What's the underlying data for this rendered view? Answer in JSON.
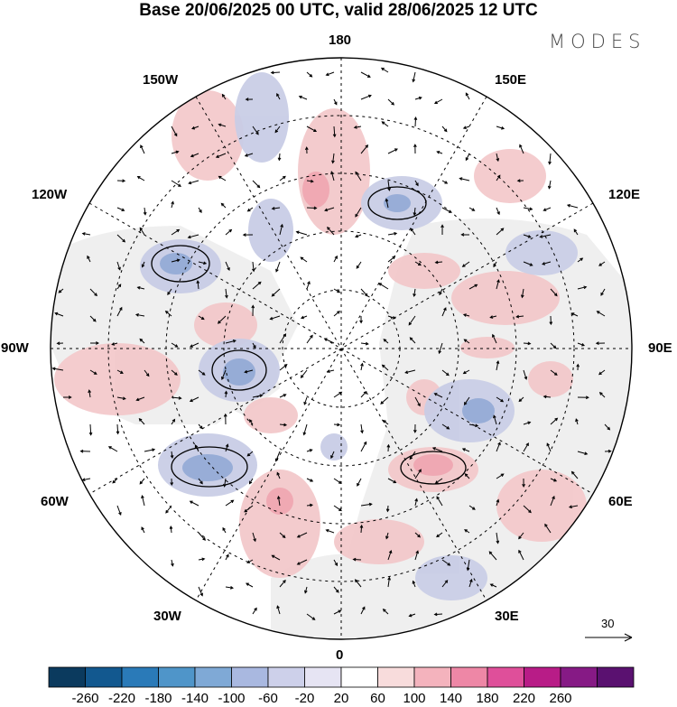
{
  "title": "Base 20/06/2025 00 UTC, valid 28/06/2025 12 UTC",
  "brand": "MODES",
  "longitude_labels": {
    "top": "180",
    "bottom": "0",
    "left": "90W",
    "right": "90E",
    "upper_left_outer": "150W",
    "upper_left_inner": "120W",
    "lower_left_outer": "60W",
    "lower_left_inner": "30W",
    "upper_right_outer": "150E",
    "upper_right_inner": "120E",
    "lower_right_outer": "60E",
    "lower_right_inner": "30E"
  },
  "vector_scale": {
    "label": "30"
  },
  "colorbar": {
    "ticks": [
      "-260",
      "-220",
      "-180",
      "-140",
      "-100",
      "-60",
      "-20",
      "20",
      "60",
      "100",
      "140",
      "180",
      "220",
      "260"
    ],
    "colors": [
      "#0b3a5e",
      "#12588f",
      "#2a7ab8",
      "#4f95c9",
      "#7fa9d6",
      "#a9b8e0",
      "#cdd0ea",
      "#e6e4f3",
      "#ffffff",
      "#f8dcdc",
      "#f4b3bd",
      "#ee87a6",
      "#df4f9a",
      "#b81c87",
      "#861a85",
      "#5a1170"
    ]
  },
  "legend_colors": {
    "land_gray": "#efefef",
    "positive": "#f3c9cb",
    "negative": "#c9cde6"
  }
}
